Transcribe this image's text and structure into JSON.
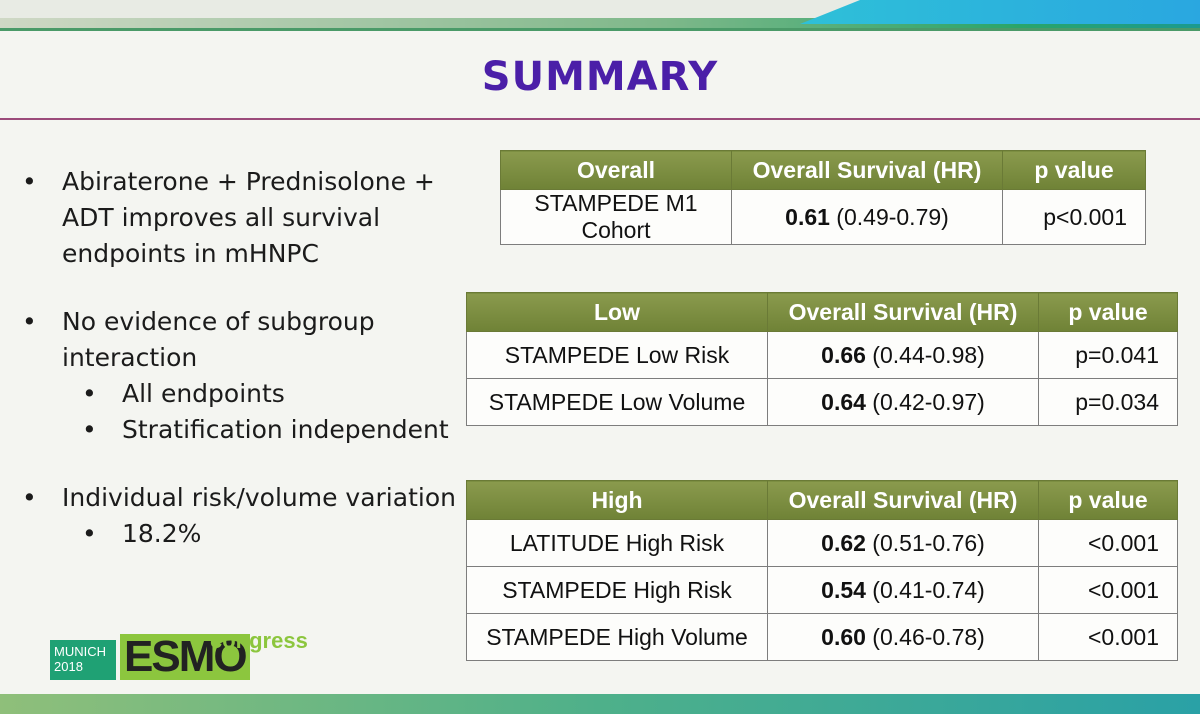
{
  "title": "SUMMARY",
  "bullets": {
    "b1": [
      "Abiraterone + Prednisolone +",
      "ADT improves all survival",
      "endpoints in mHNPC"
    ],
    "b2": [
      "No evidence of subgroup",
      "interaction"
    ],
    "b2_sub": [
      "All endpoints",
      "Stratification independent"
    ],
    "b3": [
      "Individual risk/volume variation"
    ],
    "b3_sub": [
      "18.2%"
    ],
    "marker": "•"
  },
  "tables": [
    {
      "headers": [
        "Overall",
        "Overall Survival (HR)",
        "p value"
      ],
      "rows": [
        {
          "name": "STAMPEDE M1 Cohort",
          "hr": "0.61",
          "ci": " (0.49-0.79)",
          "p": "p<0.001"
        }
      ]
    },
    {
      "headers": [
        "Low",
        "Overall Survival (HR)",
        "p value"
      ],
      "rows": [
        {
          "name": "STAMPEDE Low Risk",
          "hr": "0.66",
          "ci": " (0.44-0.98)",
          "p": "p=0.041"
        },
        {
          "name": "STAMPEDE Low Volume",
          "hr": "0.64",
          "ci": " (0.42-0.97)",
          "p": "p=0.034"
        }
      ]
    },
    {
      "headers": [
        "High",
        "Overall Survival (HR)",
        "p value"
      ],
      "rows": [
        {
          "name": "LATITUDE High Risk",
          "hr": "0.62",
          "ci": " (0.51-0.76)",
          "p": "<0.001"
        },
        {
          "name": "STAMPEDE High Risk",
          "hr": "0.54",
          "ci": " (0.41-0.74)",
          "p": "<0.001"
        },
        {
          "name": "STAMPEDE High Volume",
          "hr": "0.60",
          "ci": " (0.46-0.78)",
          "p": "<0.001"
        }
      ]
    }
  ],
  "logo": {
    "city": "MUNICH",
    "year": "2018",
    "brand": "ESMO",
    "tag": "congress"
  },
  "colors": {
    "title": "#4b1fa8",
    "table_header": "#7a8b3f",
    "rule": "#9b4a7a",
    "brand_green": "#8cc63e"
  }
}
